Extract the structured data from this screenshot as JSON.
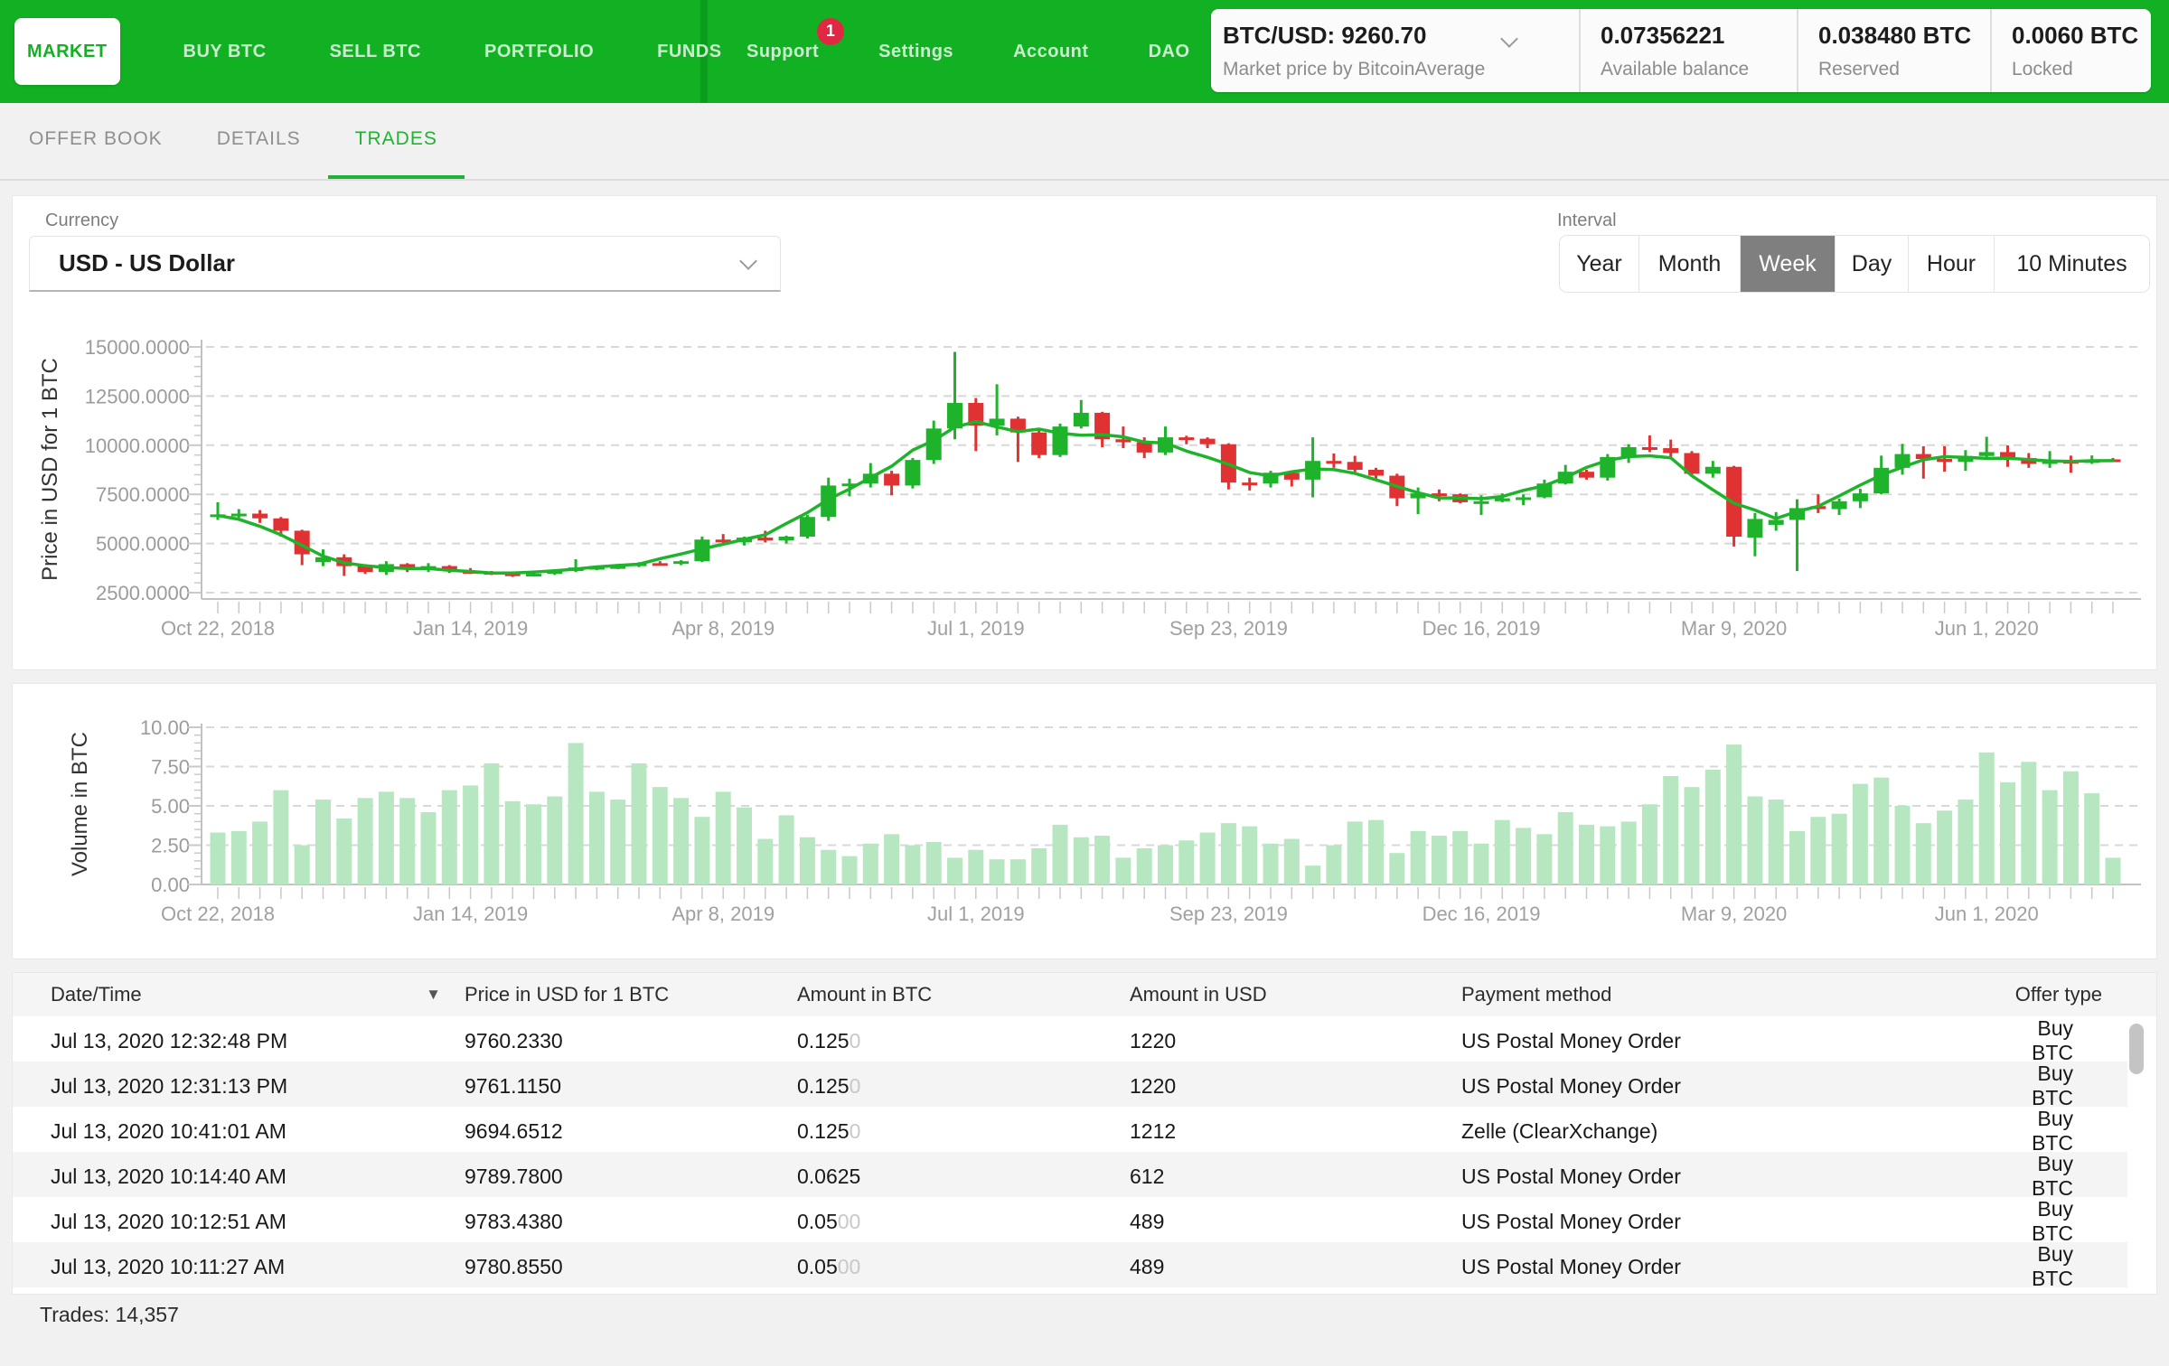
{
  "nav": {
    "items": [
      {
        "label": "MARKET",
        "active": true
      },
      {
        "label": "BUY BTC",
        "active": false
      },
      {
        "label": "SELL BTC",
        "active": false
      },
      {
        "label": "PORTFOLIO",
        "active": false
      },
      {
        "label": "FUNDS",
        "active": false
      }
    ],
    "right_items": [
      {
        "label": "Support",
        "badge": "1"
      },
      {
        "label": "Settings",
        "badge": null
      },
      {
        "label": "Account",
        "badge": null
      },
      {
        "label": "DAO",
        "badge": null
      }
    ]
  },
  "price_widget": {
    "pair": "BTC/USD: 9260.70",
    "caption": "Market price by BitcoinAverage",
    "stats": [
      {
        "value": "0.07356221",
        "label": "Available balance"
      },
      {
        "value": "0.038480 BTC",
        "label": "Reserved"
      },
      {
        "value": "0.0060 BTC",
        "label": "Locked"
      }
    ]
  },
  "tabs": [
    {
      "label": "OFFER BOOK",
      "active": false
    },
    {
      "label": "DETAILS",
      "active": false
    },
    {
      "label": "TRADES",
      "active": true
    }
  ],
  "controls": {
    "currency_label": "Currency",
    "currency_value": "USD  -  US Dollar",
    "interval_label": "Interval",
    "intervals": [
      "Year",
      "Month",
      "Week",
      "Day",
      "Hour",
      "10 Minutes"
    ],
    "selected_interval": "Week"
  },
  "chart_data": [
    {
      "type": "candlestick",
      "ylabel": "Price in USD for 1 BTC",
      "ylim": [
        2500,
        15000
      ],
      "yticks": [
        "2500.0000",
        "5000.0000",
        "7500.0000",
        "10000.0000",
        "12500.0000",
        "15000.0000"
      ],
      "xticks": [
        "Oct 22, 2018",
        "Jan 14, 2019",
        "Apr 8, 2019",
        "Jul 1, 2019",
        "Sep 23, 2019",
        "Dec 16, 2019",
        "Mar 9, 2020",
        "Jun 1, 2020"
      ],
      "xtick_every": 12,
      "grid": true,
      "up_color": "#1eb32b",
      "down_color": "#e03232",
      "candles": [
        [
          6350,
          7100,
          6200,
          6480
        ],
        [
          6480,
          6750,
          6300,
          6520
        ],
        [
          6520,
          6700,
          6050,
          6280
        ],
        [
          6280,
          6350,
          5350,
          5650
        ],
        [
          5650,
          5700,
          3900,
          4450
        ],
        [
          4050,
          4700,
          3850,
          4300
        ],
        [
          4300,
          4450,
          3350,
          3850
        ],
        [
          3850,
          3950,
          3450,
          3550
        ],
        [
          3550,
          4100,
          3400,
          3950
        ],
        [
          3950,
          4000,
          3550,
          3700
        ],
        [
          3700,
          4000,
          3550,
          3850
        ],
        [
          3850,
          3900,
          3500,
          3600
        ],
        [
          3600,
          3750,
          3450,
          3550
        ],
        [
          3550,
          3600,
          3400,
          3480
        ],
        [
          3480,
          3520,
          3300,
          3420
        ],
        [
          3420,
          3500,
          3320,
          3460
        ],
        [
          3460,
          3650,
          3400,
          3600
        ],
        [
          3600,
          4200,
          3550,
          3780
        ],
        [
          3780,
          3850,
          3650,
          3810
        ],
        [
          3810,
          3900,
          3700,
          3850
        ],
        [
          3850,
          4050,
          3800,
          4000
        ],
        [
          4000,
          4100,
          3900,
          3980
        ],
        [
          3980,
          4150,
          3900,
          4100
        ],
        [
          4100,
          5350,
          4050,
          5200
        ],
        [
          5200,
          5480,
          4950,
          5060
        ],
        [
          5060,
          5350,
          4900,
          5300
        ],
        [
          5300,
          5650,
          5050,
          5150
        ],
        [
          5150,
          5400,
          5000,
          5350
        ],
        [
          5350,
          6450,
          5250,
          6350
        ],
        [
          6350,
          8350,
          6150,
          7950
        ],
        [
          7950,
          8300,
          7400,
          8050
        ],
        [
          8050,
          9090,
          7850,
          8550
        ],
        [
          8550,
          8700,
          7450,
          7950
        ],
        [
          7950,
          9350,
          7800,
          9250
        ],
        [
          9250,
          11250,
          9050,
          10850
        ],
        [
          10850,
          14750,
          10300,
          12150
        ],
        [
          12150,
          12400,
          9700,
          11000
        ],
        [
          11000,
          13100,
          10500,
          11350
        ],
        [
          11350,
          11450,
          9150,
          10650
        ],
        [
          10650,
          10800,
          9350,
          9500
        ],
        [
          9500,
          11100,
          9400,
          10950
        ],
        [
          10950,
          12300,
          10850,
          11650
        ],
        [
          11650,
          11700,
          9900,
          10300
        ],
        [
          10300,
          10950,
          9850,
          10150
        ],
        [
          10150,
          10400,
          9350,
          9630
        ],
        [
          9630,
          10950,
          9500,
          10400
        ],
        [
          10400,
          10480,
          10050,
          10330
        ],
        [
          10330,
          10400,
          9850,
          10050
        ],
        [
          10050,
          10100,
          7750,
          8100
        ],
        [
          8100,
          8350,
          7700,
          8050
        ],
        [
          8050,
          8700,
          7850,
          8600
        ],
        [
          8600,
          8650,
          7900,
          8250
        ],
        [
          8250,
          10400,
          7350,
          9200
        ],
        [
          9200,
          9580,
          8850,
          9150
        ],
        [
          9150,
          9460,
          8550,
          8750
        ],
        [
          8750,
          8850,
          8300,
          8450
        ],
        [
          8450,
          8550,
          6900,
          7300
        ],
        [
          7300,
          7850,
          6500,
          7550
        ],
        [
          7550,
          7750,
          7150,
          7500
        ],
        [
          7500,
          7550,
          7050,
          7100
        ],
        [
          7100,
          7450,
          6450,
          7150
        ],
        [
          7150,
          7550,
          7100,
          7300
        ],
        [
          7300,
          7500,
          6950,
          7350
        ],
        [
          7350,
          8250,
          7300,
          8050
        ],
        [
          8050,
          9000,
          8000,
          8650
        ],
        [
          8650,
          8750,
          8250,
          8350
        ],
        [
          8350,
          9550,
          8200,
          9400
        ],
        [
          9400,
          10050,
          9100,
          9900
        ],
        [
          9900,
          10500,
          9650,
          9850
        ],
        [
          9850,
          10285,
          9350,
          9600
        ],
        [
          9600,
          9700,
          8400,
          8550
        ],
        [
          8550,
          9200,
          8350,
          8900
        ],
        [
          8900,
          8950,
          4850,
          5350
        ],
        [
          5300,
          6550,
          4350,
          6250
        ],
        [
          5950,
          6600,
          5650,
          6200
        ],
        [
          6200,
          7250,
          3600,
          6800
        ],
        [
          6900,
          7500,
          6550,
          6750
        ],
        [
          6750,
          7280,
          6450,
          7150
        ],
        [
          7150,
          7780,
          6800,
          7550
        ],
        [
          7550,
          9470,
          7500,
          8850
        ],
        [
          8850,
          10070,
          8500,
          9550
        ],
        [
          9550,
          9950,
          8300,
          9300
        ],
        [
          9300,
          9950,
          8650,
          9150
        ],
        [
          9150,
          9750,
          8700,
          9450
        ],
        [
          9450,
          10430,
          9350,
          9650
        ],
        [
          9650,
          9990,
          8900,
          9350
        ],
        [
          9350,
          9600,
          8850,
          9050
        ],
        [
          9050,
          9700,
          8850,
          9200
        ],
        [
          9200,
          9470,
          8600,
          9100
        ],
        [
          9100,
          9480,
          9050,
          9280
        ],
        [
          9280,
          9350,
          9150,
          9260
        ]
      ]
    },
    {
      "type": "bar",
      "ylabel": "Volume in BTC",
      "ylim": [
        0,
        10
      ],
      "yticks": [
        "0.00",
        "2.50",
        "5.00",
        "7.50",
        "10.00"
      ],
      "xticks": [
        "Oct 22, 2018",
        "Jan 14, 2019",
        "Apr 8, 2019",
        "Jul 1, 2019",
        "Sep 23, 2019",
        "Dec 16, 2019",
        "Mar 9, 2020",
        "Jun 1, 2020"
      ],
      "xtick_every": 12,
      "grid": true,
      "bar_color": "#b7e7c0",
      "values": [
        3.3,
        3.4,
        4.0,
        6.0,
        2.5,
        5.4,
        4.2,
        5.5,
        5.9,
        5.5,
        4.6,
        6.0,
        6.3,
        7.7,
        5.3,
        5.1,
        5.6,
        9.0,
        5.9,
        5.4,
        7.7,
        6.2,
        5.5,
        4.3,
        5.9,
        4.9,
        2.9,
        4.4,
        3.0,
        2.2,
        1.8,
        2.6,
        3.2,
        2.5,
        2.7,
        1.7,
        2.2,
        1.6,
        1.6,
        2.3,
        3.8,
        3.0,
        3.1,
        1.7,
        2.3,
        2.5,
        2.8,
        3.3,
        3.9,
        3.7,
        2.6,
        2.9,
        1.2,
        2.5,
        4.0,
        4.1,
        2.0,
        3.4,
        3.1,
        3.4,
        2.6,
        4.1,
        3.6,
        3.2,
        4.6,
        3.8,
        3.7,
        4.0,
        5.1,
        6.9,
        6.2,
        7.3,
        8.9,
        5.6,
        5.4,
        3.4,
        4.3,
        4.5,
        6.4,
        6.8,
        5.0,
        3.9,
        4.7,
        5.4,
        8.4,
        6.5,
        7.8,
        6.0,
        7.2,
        5.8,
        1.7
      ]
    }
  ],
  "table": {
    "columns": [
      "Date/Time",
      "Price in USD for 1 BTC",
      "Amount in BTC",
      "Amount in USD",
      "Payment method",
      "Offer type"
    ],
    "sort_column": "Date/Time",
    "sort_indicator": "▼",
    "rows": [
      {
        "datetime": "Jul 13, 2020 12:32:48 PM",
        "price": "9760.2330",
        "amount": "0.125",
        "amount_pad": "0",
        "usd": "1220",
        "method": "US Postal Money Order",
        "type": "Buy BTC"
      },
      {
        "datetime": "Jul 13, 2020 12:31:13 PM",
        "price": "9761.1150",
        "amount": "0.125",
        "amount_pad": "0",
        "usd": "1220",
        "method": "US Postal Money Order",
        "type": "Buy BTC"
      },
      {
        "datetime": "Jul 13, 2020 10:41:01 AM",
        "price": "9694.6512",
        "amount": "0.125",
        "amount_pad": "0",
        "usd": "1212",
        "method": "Zelle (ClearXchange)",
        "type": "Buy BTC"
      },
      {
        "datetime": "Jul 13, 2020 10:14:40 AM",
        "price": "9789.7800",
        "amount": "0.0625",
        "amount_pad": "",
        "usd": "612",
        "method": "US Postal Money Order",
        "type": "Buy BTC"
      },
      {
        "datetime": "Jul 13, 2020 10:12:51 AM",
        "price": "9783.4380",
        "amount": "0.05",
        "amount_pad": "00",
        "usd": "489",
        "method": "US Postal Money Order",
        "type": "Buy BTC"
      },
      {
        "datetime": "Jul 13, 2020 10:11:27 AM",
        "price": "9780.8550",
        "amount": "0.05",
        "amount_pad": "00",
        "usd": "489",
        "method": "US Postal Money Order",
        "type": "Buy BTC"
      }
    ]
  },
  "footer": {
    "trades_label": "Trades: 14,357"
  },
  "colors": {
    "nav_green": "#12b123",
    "nav_separator": "#0c9c1c",
    "badge_red": "#e02843",
    "tab_active_green": "#22b233",
    "candle_up": "#1eb32b",
    "candle_down": "#e03232",
    "volume_bar": "#b7e7c0",
    "selected_interval_bg": "#7f7f7f"
  }
}
